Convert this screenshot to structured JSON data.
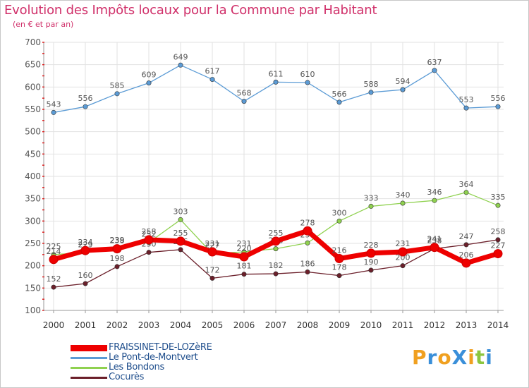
{
  "title": "Evolution des Impôts locaux pour la Commune par Habitant",
  "subtitle": "(en € et par an)",
  "brand": "ProXiti",
  "chart_data": {
    "type": "line",
    "x": [
      "2000",
      "2001",
      "2002",
      "2003",
      "2004",
      "2005",
      "2006",
      "2007",
      "2008",
      "2009",
      "2010",
      "2011",
      "2012",
      "2013",
      "2014"
    ],
    "ylim": [
      100,
      700
    ],
    "yticks": [
      100,
      150,
      200,
      250,
      300,
      350,
      400,
      450,
      500,
      550,
      600,
      650,
      700
    ],
    "xlabel": "",
    "ylabel": "",
    "grid": true,
    "legend_position": "bottom-left",
    "series": [
      {
        "name": "Le Pont-de-Montvert",
        "color": "#5b9bd5",
        "values": [
          543,
          556,
          585,
          609,
          649,
          617,
          568,
          611,
          610,
          566,
          588,
          594,
          637,
          553,
          556
        ]
      },
      {
        "name": "Les Bondons",
        "color": "#8fd14f",
        "values": [
          225,
          229,
          239,
          252,
          303,
          227,
          231,
          238,
          251,
          300,
          333,
          340,
          346,
          364,
          335
        ]
      },
      {
        "name": "Cocurès",
        "color": "#6b1f2a",
        "values": [
          152,
          160,
          198,
          230,
          236,
          172,
          181,
          182,
          186,
          178,
          190,
          200,
          238,
          247,
          258
        ]
      },
      {
        "name": "FRAISSINET-DE-LOZèRE",
        "color": "#ee0000",
        "values": [
          214,
          234,
          238,
          258,
          255,
          231,
          220,
          255,
          278,
          216,
          228,
          231,
          241,
          206,
          227
        ]
      }
    ]
  }
}
